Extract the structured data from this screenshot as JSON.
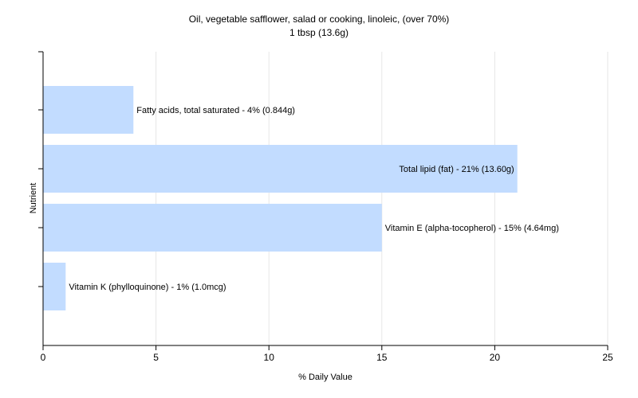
{
  "chart_data": {
    "type": "bar",
    "orientation": "horizontal",
    "title": "Oil, vegetable safflower, salad or cooking, linoleic, (over 70%)",
    "subtitle": "1 tbsp (13.6g)",
    "xlabel": "% Daily Value",
    "ylabel": "Nutrient",
    "xlim": [
      0,
      25
    ],
    "xticks": [
      0,
      5,
      10,
      15,
      20,
      25
    ],
    "grid": true,
    "bar_color": "#c2dcff",
    "categories": [
      "Fatty acids, total saturated",
      "Total lipid (fat)",
      "Vitamin E (alpha-tocopherol)",
      "Vitamin K (phylloquinone)"
    ],
    "values": [
      4,
      21,
      15,
      1
    ],
    "data_labels": [
      "Fatty acids, total saturated - 4% (0.844g)",
      "Total lipid (fat) - 21% (13.60g)",
      "Vitamin E (alpha-tocopherol) - 15% (4.64mg)",
      "Vitamin K (phylloquinone) - 1% (1.0mcg)"
    ],
    "label_placement": [
      "outside",
      "inside",
      "outside",
      "outside"
    ]
  }
}
